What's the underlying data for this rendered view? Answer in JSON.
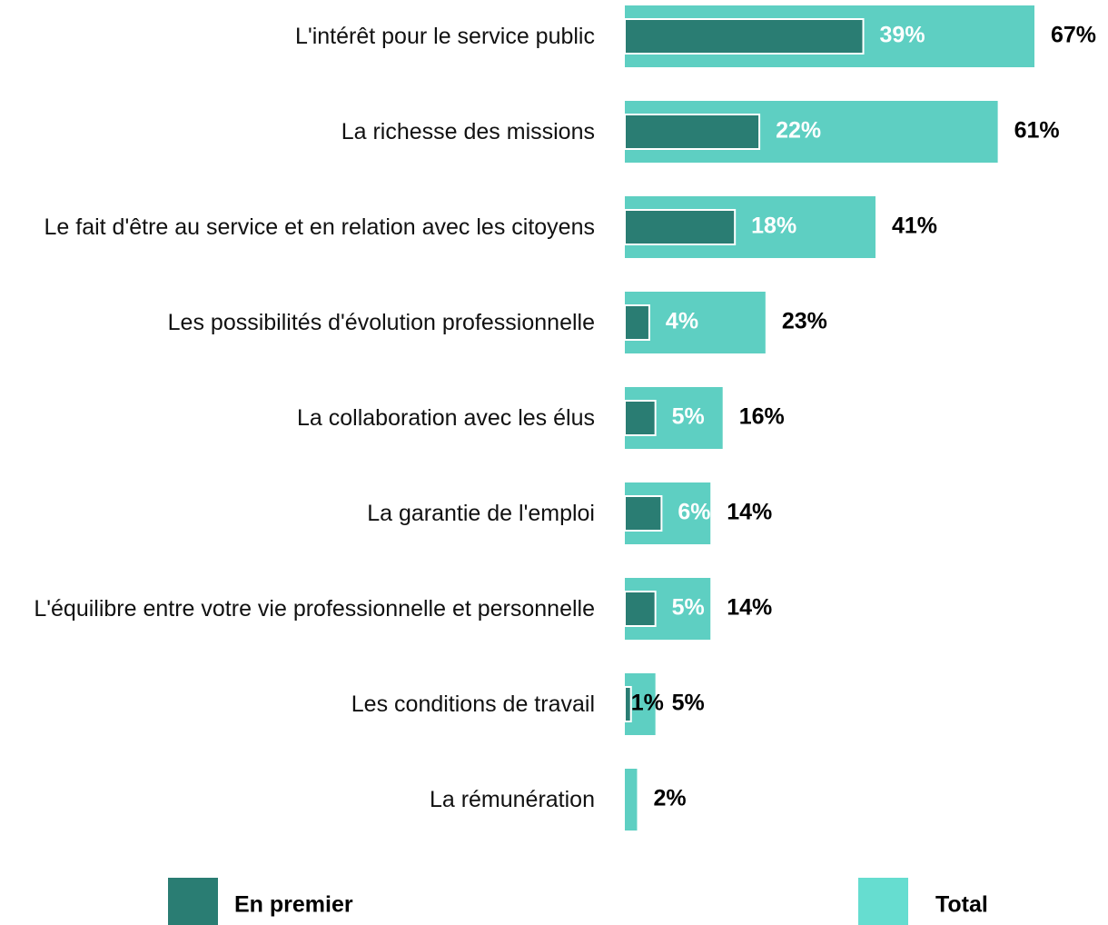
{
  "chart_data": {
    "type": "bar",
    "categories": [
      "L'intérêt pour le service public",
      "La richesse des missions",
      "Le fait d'être au service et en relation avec les citoyens",
      "Les possibilités d'évolution professionnelle",
      "La collaboration avec les élus",
      "La garantie de l'emploi",
      "L'équilibre entre votre vie professionnelle et personnelle",
      "Les conditions de travail",
      "La rémunération"
    ],
    "series": [
      {
        "name": "En premier",
        "color": "#2a7d73",
        "values": [
          39,
          22,
          18,
          4,
          5,
          6,
          5,
          1,
          null
        ],
        "value_labels": [
          "39%",
          "22%",
          "18%",
          "4%",
          "5%",
          "6%",
          "5%",
          "1%",
          null
        ]
      },
      {
        "name": "Total",
        "color": "#5ecfc2",
        "values": [
          67,
          61,
          41,
          23,
          16,
          14,
          14,
          5,
          2
        ],
        "value_labels": [
          "67%",
          "61%",
          "41%",
          "23%",
          "16%",
          "14%",
          "14%",
          "5%",
          "2%"
        ]
      }
    ]
  }
}
